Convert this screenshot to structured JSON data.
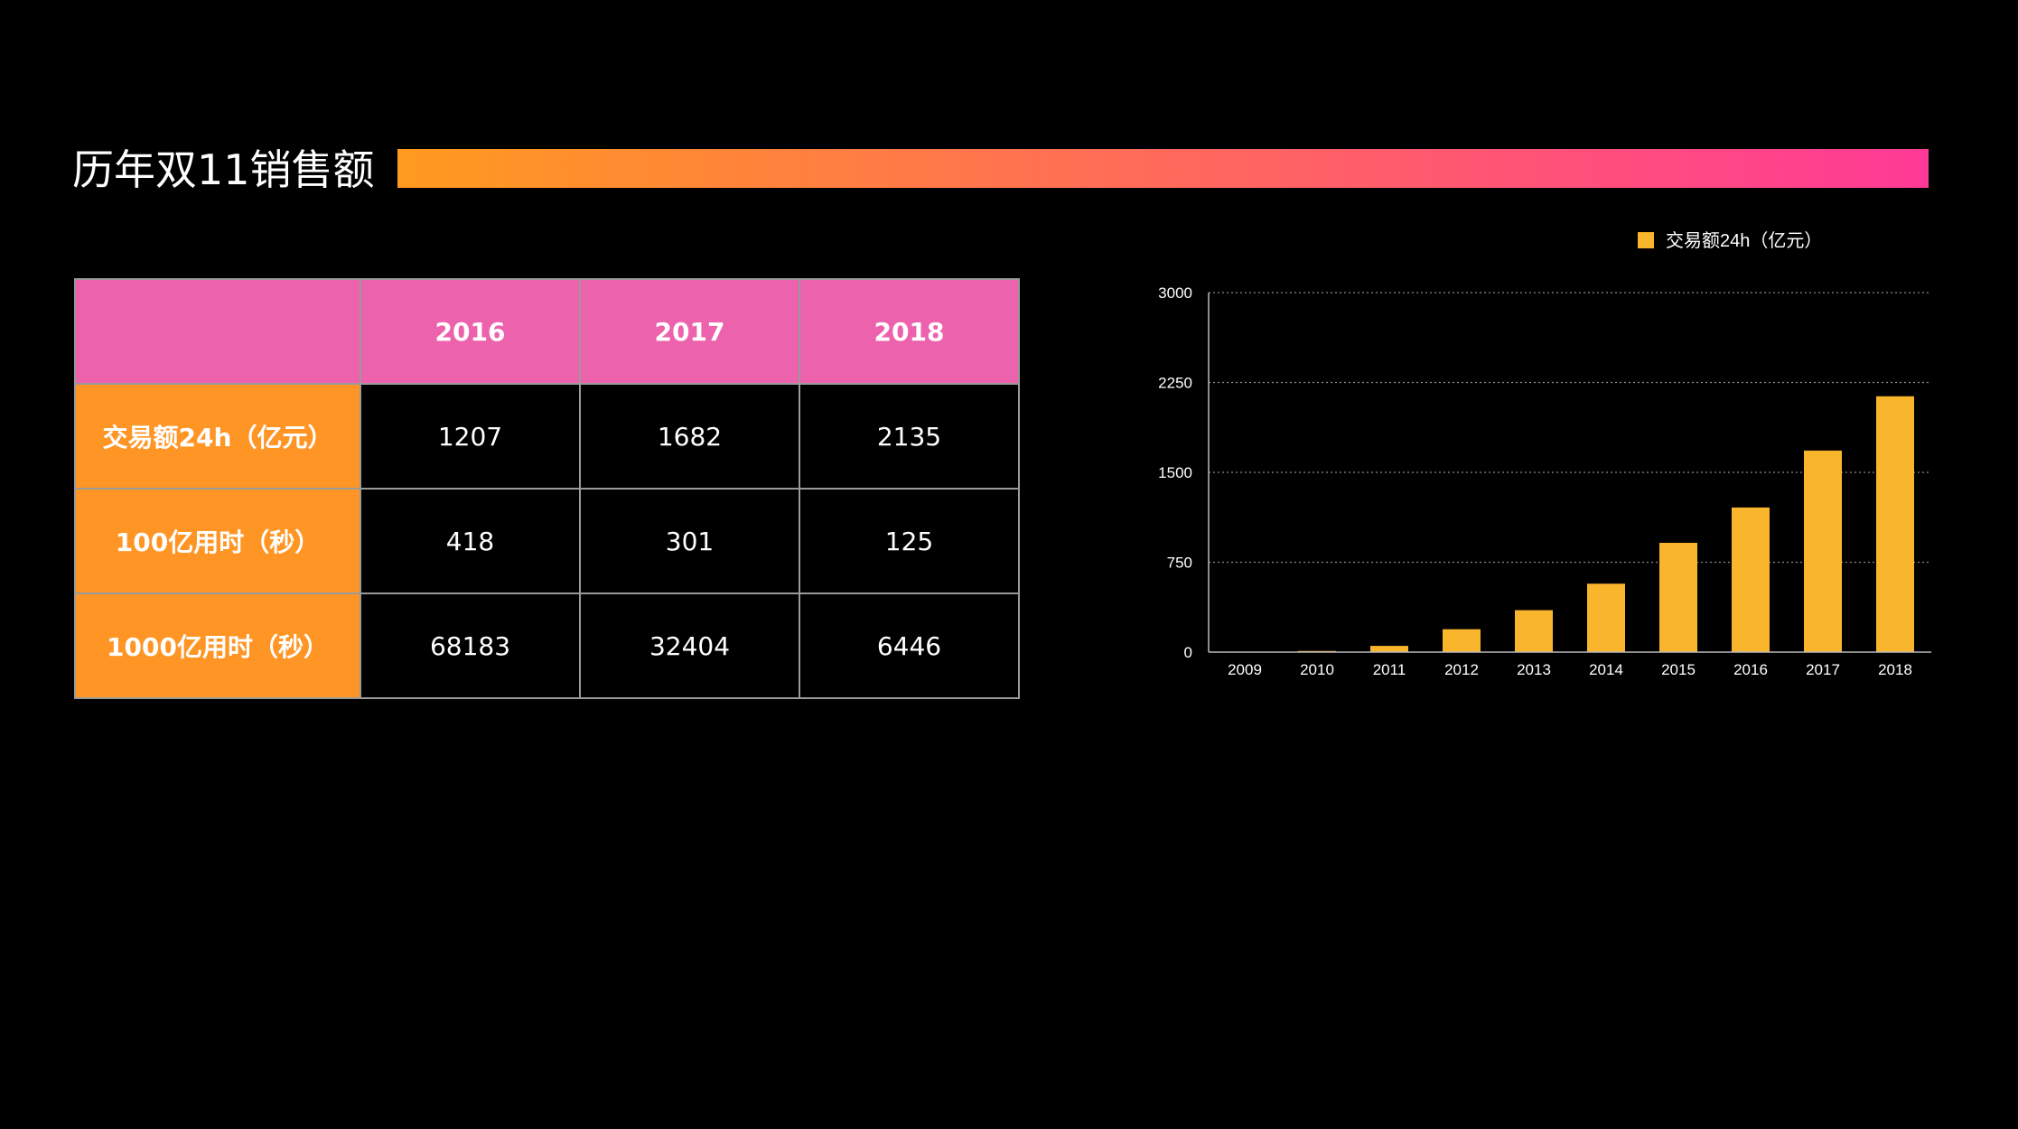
{
  "slide": {
    "title": "历年双11销售额"
  },
  "colors": {
    "gradient_start": "#ff9a1f",
    "gradient_end": "#ff3a96",
    "table_header_bg": "#ed62ad",
    "table_rowhead_bg": "#ff9524",
    "bar_color": "#f9b62c",
    "background": "#000000"
  },
  "table": {
    "columns": [
      "2016",
      "2017",
      "2018"
    ],
    "rows": [
      {
        "label": "交易额24h（亿元）",
        "values": [
          "1207",
          "1682",
          "2135"
        ]
      },
      {
        "label": "100亿用时（秒）",
        "values": [
          "418",
          "301",
          "125"
        ]
      },
      {
        "label": "1000亿用时（秒）",
        "values": [
          "68183",
          "32404",
          "6446"
        ]
      }
    ]
  },
  "chart_data": {
    "type": "bar",
    "categories": [
      "2009",
      "2010",
      "2011",
      "2012",
      "2013",
      "2014",
      "2015",
      "2016",
      "2017",
      "2018"
    ],
    "series": [
      {
        "name": "交易额24h（亿元）",
        "values": [
          0.5,
          9.36,
          52,
          191,
          350,
          571,
          912,
          1207,
          1682,
          2135
        ]
      }
    ],
    "yticks": [
      "0",
      "750",
      "1500",
      "2250",
      "3000"
    ],
    "ylim": [
      0,
      3000
    ],
    "grid": true,
    "legend_position": "top-right"
  }
}
